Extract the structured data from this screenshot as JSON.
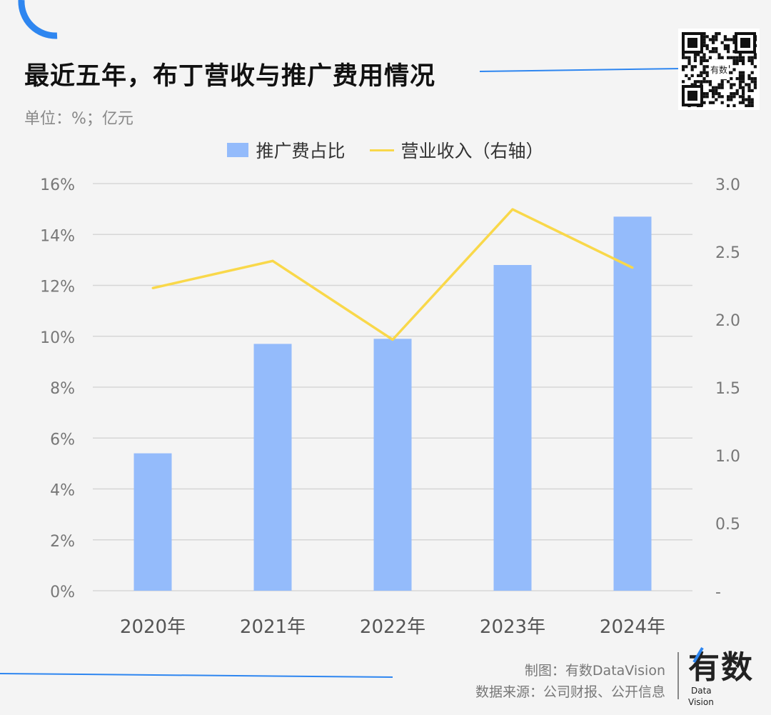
{
  "header": {
    "title": "最近五年，布丁营收与推广费用情况",
    "unit": "单位：%；亿元"
  },
  "colors": {
    "accent": "#2e86f0",
    "bar": "#94bbfb",
    "line": "#f9d84a",
    "background": "#f4f4f4"
  },
  "chart_data": {
    "type": "bar+line",
    "categories": [
      "2020年",
      "2021年",
      "2022年",
      "2023年",
      "2024年"
    ],
    "series": [
      {
        "name": "推广费占比",
        "type": "bar",
        "axis": "left",
        "values": [
          5.4,
          9.7,
          9.9,
          12.8,
          14.7
        ]
      },
      {
        "name": "营业收入（右轴）",
        "type": "line",
        "axis": "right",
        "values": [
          2.23,
          2.43,
          1.85,
          2.81,
          2.38
        ]
      }
    ],
    "left_axis": {
      "ylim": [
        0,
        16
      ],
      "ticks": [
        "0%",
        "2%",
        "4%",
        "6%",
        "8%",
        "10%",
        "12%",
        "14%",
        "16%"
      ]
    },
    "right_axis": {
      "ylim": [
        0,
        3
      ],
      "ticks": [
        "-",
        "0.5",
        "1.0",
        "1.5",
        "2.0",
        "2.5",
        "3.0"
      ]
    },
    "grid": true,
    "legend": "top"
  },
  "footer": {
    "credit": "制图：有数DataVision",
    "source": "数据来源：公司财报、公开信息",
    "logo_text": "有数 Data Vision"
  },
  "qr_label": "有数"
}
